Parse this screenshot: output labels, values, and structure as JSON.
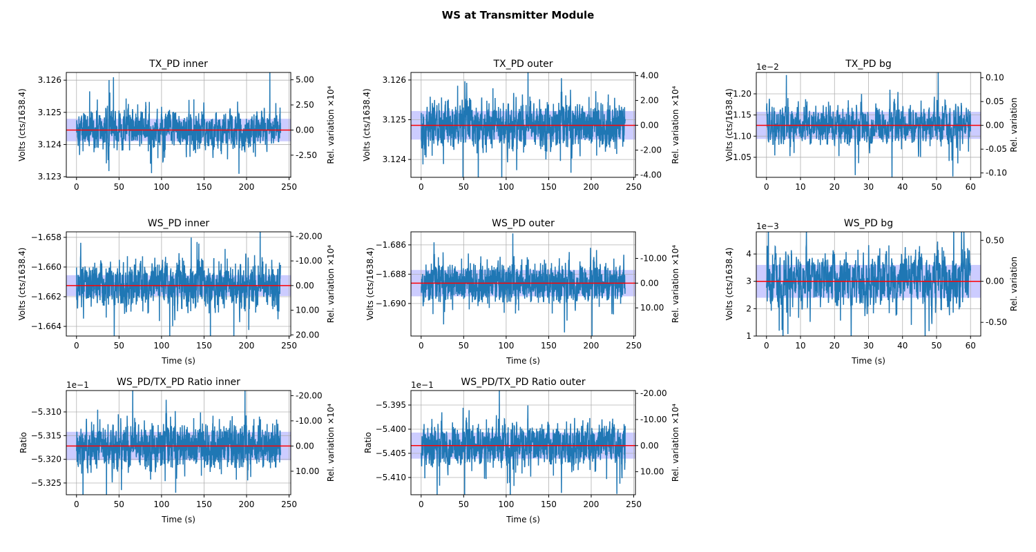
{
  "chart_data": {
    "type": "line",
    "title": "WS at Transmitter Module",
    "colors": {
      "signal": "#1f77b4",
      "mean": "#ff0000",
      "band": "#0000ff",
      "grid": "#b0b0b0"
    },
    "subplots": [
      {
        "title": "TX_PD inner",
        "ylabel": "Volts (cts/1638.4)",
        "xlabel": "",
        "ylabel_right": "Rel. variation ×10⁴",
        "offset": "",
        "xlim": [
          -12,
          252
        ],
        "xticks": [
          0,
          50,
          100,
          150,
          200,
          250
        ],
        "x_end": 240,
        "ylim": [
          3.12298,
          3.12624
        ],
        "yticks": [
          3.123,
          3.124,
          3.125,
          3.126
        ],
        "ytick_labels": [
          "3.123",
          "3.124",
          "3.125",
          "3.126"
        ],
        "mean": 3.12445,
        "band": 0.00035,
        "noise_sd": 0.00033,
        "rel_scale": 10000,
        "rticks": [
          5,
          2.5,
          0,
          -2.5
        ],
        "rtick_labels": [
          "5.00",
          "2.50",
          "0.00",
          "-2.50"
        ]
      },
      {
        "title": "TX_PD outer",
        "ylabel": "Volts (cts/1638.4)",
        "xlabel": "",
        "ylabel_right": "Rel. variation ×10⁴",
        "offset": "",
        "xlim": [
          -12,
          252
        ],
        "xticks": [
          0,
          50,
          100,
          150,
          200,
          250
        ],
        "x_end": 240,
        "ylim": [
          3.12355,
          3.12619
        ],
        "yticks": [
          3.124,
          3.125,
          3.126
        ],
        "ytick_labels": [
          "3.124",
          "3.125",
          "3.126"
        ],
        "mean": 3.12486,
        "band": 0.00036,
        "noise_sd": 0.00034,
        "rel_scale": 10000,
        "rticks": [
          4,
          2,
          0,
          -2,
          -4
        ],
        "rtick_labels": [
          "4.00",
          "2.00",
          "0.00",
          "-2.00",
          "-4.00"
        ]
      },
      {
        "title": "TX_PD bg",
        "ylabel": "Volts (cts/1638.4)",
        "xlabel": "",
        "ylabel_right": "Rel. variation",
        "offset": "1e−2",
        "xlim": [
          -3,
          63
        ],
        "xticks": [
          0,
          10,
          20,
          30,
          40,
          50,
          60
        ],
        "x_end": 60,
        "ylim": [
          1.0026,
          1.2506
        ],
        "yticks": [
          1.05,
          1.1,
          1.15,
          1.2
        ],
        "ytick_labels": [
          "1.05",
          "1.10",
          "1.15",
          "1.20"
        ],
        "mean": 1.1255,
        "band": 0.032,
        "noise_sd": 0.028,
        "rel_scale": 1,
        "rticks": [
          0.1,
          0.05,
          0,
          -0.05,
          -0.1
        ],
        "rtick_labels": [
          "0.10",
          "0.05",
          "0.00",
          "-0.05",
          "-0.10"
        ]
      },
      {
        "title": "WS_PD inner",
        "ylabel": "Volts (cts/1638.4)",
        "xlabel": "Time (s)",
        "ylabel_right": "Rel. variation ×10⁴",
        "offset": "",
        "xlim": [
          -12,
          252
        ],
        "xticks": [
          0,
          50,
          100,
          150,
          200,
          250
        ],
        "x_end": 240,
        "ylim": [
          -1.66465,
          -1.65763
        ],
        "yticks": [
          -1.664,
          -1.662,
          -1.66,
          -1.658
        ],
        "ytick_labels": [
          "−1.664",
          "−1.662",
          "−1.660",
          "−1.658"
        ],
        "mean": -1.66125,
        "band": 0.0007,
        "noise_sd": 0.0009,
        "rel_scale": 10000,
        "rticks": [
          -20,
          -10,
          0,
          10,
          20
        ],
        "rtick_labels": [
          "-20.00",
          "-10.00",
          "0.00",
          "10.00",
          "20.00"
        ]
      },
      {
        "title": "WS_PD outer",
        "ylabel": "Volts (cts/1638.4)",
        "xlabel": "Time (s)",
        "ylabel_right": "Rel. variation ×10⁴",
        "offset": "",
        "xlim": [
          -12,
          252
        ],
        "xticks": [
          0,
          50,
          100,
          150,
          200,
          250
        ],
        "x_end": 240,
        "ylim": [
          -1.69222,
          -1.68511
        ],
        "yticks": [
          -1.69,
          -1.688,
          -1.686
        ],
        "ytick_labels": [
          "−1.690",
          "−1.688",
          "−1.686"
        ],
        "mean": -1.68861,
        "band": 0.0009,
        "noise_sd": 0.0008,
        "rel_scale": 10000,
        "rticks": [
          -10,
          0,
          10
        ],
        "rtick_labels": [
          "-10.00",
          "0.00",
          "10.00"
        ]
      },
      {
        "title": "WS_PD bg",
        "ylabel": "Volts (cts/1638.4)",
        "xlabel": "Time (s)",
        "ylabel_right": "Rel. variation",
        "offset": "1e−3",
        "xlim": [
          -3,
          63
        ],
        "xticks": [
          0,
          10,
          20,
          30,
          40,
          50,
          60
        ],
        "x_end": 60,
        "ylim": [
          1.0,
          4.81
        ],
        "yticks": [
          1,
          2,
          3,
          4
        ],
        "ytick_labels": [
          "1",
          "2",
          "3",
          "4"
        ],
        "mean": 3.0,
        "band": 0.6,
        "noise_sd": 0.6,
        "rel_scale": 1,
        "rticks": [
          0.5,
          0,
          -0.5
        ],
        "rtick_labels": [
          "0.50",
          "0.00",
          "-0.50"
        ]
      },
      {
        "title": "WS_PD/TX_PD Ratio inner",
        "ylabel": "Ratio",
        "xlabel": "Time (s)",
        "ylabel_right": "Rel. variation ×10⁴",
        "offset": "1e−1",
        "xlim": [
          -12,
          252
        ],
        "xticks": [
          0,
          50,
          100,
          150,
          200,
          250
        ],
        "x_end": 240,
        "ylim": [
          -5.32748,
          -5.30549
        ],
        "yticks": [
          -5.325,
          -5.32,
          -5.315,
          -5.31
        ],
        "ytick_labels": [
          "−5.325",
          "−5.320",
          "−5.315",
          "−5.310"
        ],
        "mean": -5.3172,
        "band": 0.003,
        "noise_sd": 0.0028,
        "rel_scale": 10000,
        "rticks": [
          -20,
          -10,
          0,
          10
        ],
        "rtick_labels": [
          "-20.00",
          "-10.00",
          "0.00",
          "10.00"
        ]
      },
      {
        "title": "WS_PD/TX_PD Ratio outer",
        "ylabel": "Ratio",
        "xlabel": "Time (s)",
        "ylabel_right": "Rel. variation ×10⁴",
        "offset": "1e−1",
        "xlim": [
          -12,
          252
        ],
        "xticks": [
          0,
          50,
          100,
          150,
          200,
          250
        ],
        "x_end": 240,
        "ylim": [
          -5.41357,
          -5.392
        ],
        "yticks": [
          -5.41,
          -5.405,
          -5.4,
          -5.395
        ],
        "ytick_labels": [
          "−5.410",
          "−5.405",
          "−5.400",
          "−5.395"
        ],
        "mean": -5.4034,
        "band": 0.0027,
        "noise_sd": 0.0026,
        "rel_scale": 10000,
        "rticks": [
          -20,
          -10,
          0,
          10
        ],
        "rtick_labels": [
          "-20.00",
          "-10.00",
          "0.00",
          "10.00"
        ]
      }
    ]
  }
}
